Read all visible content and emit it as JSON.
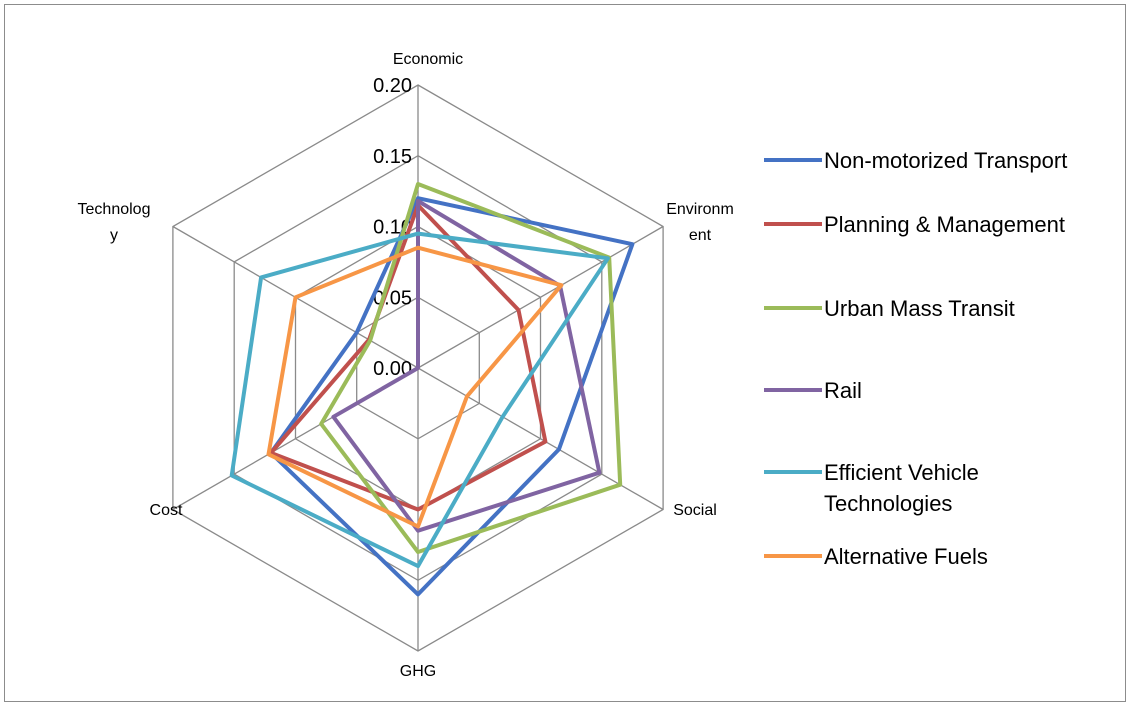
{
  "chart_data": {
    "type": "radar",
    "axes": [
      {
        "name": "economic",
        "label_lines": [
          "Economic"
        ]
      },
      {
        "name": "environment",
        "label_lines": [
          "Environm",
          "ent"
        ]
      },
      {
        "name": "social",
        "label_lines": [
          "Social"
        ]
      },
      {
        "name": "ghg",
        "label_lines": [
          "GHG"
        ]
      },
      {
        "name": "cost",
        "label_lines": [
          "Cost"
        ]
      },
      {
        "name": "technology",
        "label_lines": [
          "Technolog",
          "y"
        ]
      }
    ],
    "rlim": [
      0,
      0.2
    ],
    "ticks": [
      "0.00",
      "0.05",
      "0.10",
      "0.15",
      "0.20"
    ],
    "grid": true,
    "legend_position": "right",
    "series": [
      {
        "name": "Non-motorized Transport",
        "color": "#4472C4",
        "legend_lines": [
          "Non-motorized Transport"
        ],
        "values": [
          0.12,
          0.175,
          0.115,
          0.16,
          0.12,
          0.05
        ]
      },
      {
        "name": "Planning & Management",
        "color": "#C0504D",
        "legend_lines": [
          "Planning & Management"
        ],
        "values": [
          0.115,
          0.082,
          0.104,
          0.1,
          0.12,
          0.04
        ]
      },
      {
        "name": "Urban Mass Transit",
        "color": "#9BBB59",
        "legend_lines": [
          "Urban Mass Transit"
        ],
        "values": [
          0.13,
          0.156,
          0.165,
          0.13,
          0.079,
          0.039
        ]
      },
      {
        "name": "Rail",
        "color": "#8064A2",
        "legend_lines": [
          "Rail"
        ],
        "values": [
          0.118,
          0.116,
          0.148,
          0.115,
          0.069,
          0.0
        ]
      },
      {
        "name": "Efficient Vehicle Technologies",
        "color": "#4BACC6",
        "legend_lines": [
          "Efficient Vehicle",
          "Technologies"
        ],
        "values": [
          0.095,
          0.155,
          0.069,
          0.14,
          0.152,
          0.128
        ]
      },
      {
        "name": "Alternative Fuels",
        "color": "#F79646",
        "legend_lines": [
          "Alternative Fuels"
        ],
        "values": [
          0.085,
          0.117,
          0.04,
          0.112,
          0.122,
          0.1
        ]
      }
    ]
  }
}
